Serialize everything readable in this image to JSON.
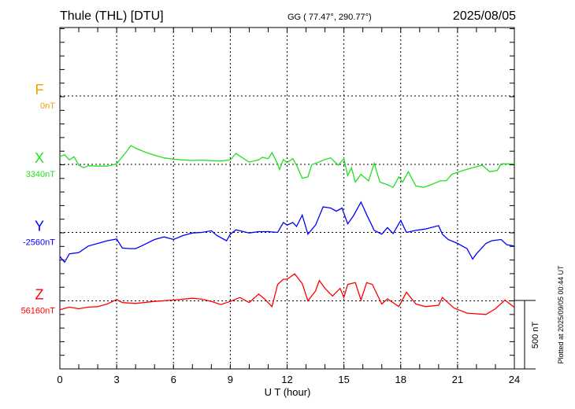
{
  "header": {
    "station": "Thule (THL)  [DTU]",
    "coords": "GG ( 77.47°, 290.77°)",
    "date": "2025/08/05"
  },
  "footer": {
    "plotted": "Plotted at 2025/09/05 00:44 UT"
  },
  "chart_data": {
    "type": "line",
    "title": "Thule (THL) [DTU] 2025/08/05",
    "xlabel": "U T (hour)",
    "xlim": [
      0,
      24
    ],
    "xticks": [
      "0",
      "3",
      "6",
      "9",
      "12",
      "15",
      "18",
      "21",
      "24"
    ],
    "scale_bar": {
      "label": "500 nT",
      "value_nT": 500
    },
    "grid": "dotted, every 3 hours and at each component baseline",
    "series": [
      {
        "name": "F",
        "baseline_label": "0nT",
        "color": "#f0a000",
        "x": [],
        "y": []
      },
      {
        "name": "X",
        "baseline_label": "3340nT",
        "color": "#22e022",
        "x": [
          0,
          0.25,
          0.5,
          0.75,
          1,
          1.25,
          1.5,
          2,
          2.5,
          3,
          3.5,
          3.75,
          4,
          4.5,
          5,
          5.5,
          6,
          6.5,
          7,
          7.5,
          8,
          8.5,
          9,
          9.3,
          9.5,
          10,
          10.5,
          10.7,
          11,
          11.2,
          11.5,
          11.6,
          11.8,
          12,
          12.3,
          12.5,
          12.8,
          13.1,
          13.3,
          13.6,
          14,
          14.3,
          14.7,
          15,
          15.2,
          15.4,
          15.6,
          15.9,
          16.3,
          16.6,
          16.9,
          17.3,
          17.6,
          17.9,
          18.1,
          18.4,
          18.8,
          19.2,
          19.6,
          20.1,
          20.4,
          20.7,
          21.3,
          21.8,
          22.3,
          22.7,
          23.1,
          23.3,
          24
        ],
        "y": [
          56,
          71,
          33,
          56,
          -6,
          -25,
          -10,
          -13,
          -13,
          4,
          90,
          138,
          119,
          90,
          67,
          48,
          38,
          33,
          29,
          31,
          27,
          25,
          33,
          81,
          61,
          17,
          33,
          52,
          42,
          86,
          4,
          -38,
          36,
          13,
          42,
          -6,
          -102,
          -92,
          -2,
          13,
          36,
          48,
          -6,
          42,
          -83,
          -25,
          -130,
          -73,
          -121,
          8,
          -130,
          -150,
          -169,
          -92,
          -130,
          -54,
          -159,
          -169,
          -150,
          -121,
          -121,
          -73,
          -44,
          -25,
          -6,
          -54,
          -44,
          4,
          4
        ]
      },
      {
        "name": "Y",
        "baseline_label": "-2560nT",
        "color": "#0000ff",
        "x": [
          0,
          0.25,
          0.5,
          1,
          1.5,
          2,
          2.5,
          3,
          3.3,
          3.7,
          4,
          4.3,
          5,
          5.5,
          6,
          6.5,
          7,
          7.5,
          8,
          8.3,
          8.8,
          9,
          9.3,
          10,
          10.5,
          11,
          11.5,
          11.8,
          12,
          12.3,
          12.5,
          12.8,
          13.1,
          13.5,
          13.9,
          14.3,
          14.6,
          14.9,
          15.2,
          15.5,
          15.9,
          16.2,
          16.6,
          17,
          17.3,
          17.6,
          18,
          18.3,
          18.8,
          19.3,
          20,
          20.2,
          20.5,
          21,
          21.5,
          21.8,
          22,
          22.5,
          22.8,
          23.3,
          23.6,
          24
        ],
        "y": [
          -177,
          -219,
          -157,
          -148,
          -100,
          -81,
          -61,
          -48,
          -115,
          -119,
          -119,
          -100,
          -52,
          -33,
          -52,
          -23,
          -4,
          0,
          12,
          -23,
          -61,
          -13,
          19,
          -4,
          6,
          6,
          0,
          73,
          54,
          73,
          44,
          127,
          -13,
          54,
          188,
          179,
          156,
          179,
          63,
          121,
          223,
          131,
          15,
          -13,
          35,
          -8,
          88,
          0,
          15,
          25,
          50,
          -13,
          -52,
          -81,
          -119,
          -196,
          -157,
          -81,
          -61,
          -52,
          -90,
          -100
        ]
      },
      {
        "name": "Z",
        "baseline_label": "56160nT",
        "color": "#ff0000",
        "x": [
          0,
          0.5,
          1,
          1.5,
          2,
          2.5,
          3,
          3.3,
          4,
          5,
          6,
          7,
          7.5,
          8,
          8.5,
          9,
          9.5,
          10,
          10.5,
          10.8,
          11.2,
          11.5,
          11.8,
          12,
          12.4,
          12.8,
          13.1,
          13.5,
          13.7,
          14,
          14.4,
          14.8,
          15,
          15.2,
          15.6,
          15.9,
          16.2,
          16.5,
          17,
          17.3,
          17.9,
          18.3,
          18.8,
          19.3,
          20,
          20.2,
          20.8,
          21.5,
          22.5,
          23,
          23.5,
          24
        ],
        "y": [
          -65,
          -46,
          -58,
          -46,
          -42,
          -23,
          10,
          -13,
          -19,
          -4,
          6,
          19,
          12,
          -4,
          -27,
          -4,
          25,
          -13,
          50,
          15,
          -42,
          121,
          159,
          159,
          198,
          127,
          0,
          73,
          150,
          92,
          35,
          92,
          25,
          121,
          134,
          6,
          134,
          121,
          -23,
          15,
          -42,
          63,
          -23,
          -42,
          -33,
          25,
          -52,
          -90,
          -100,
          -58,
          6,
          -48
        ]
      }
    ]
  }
}
